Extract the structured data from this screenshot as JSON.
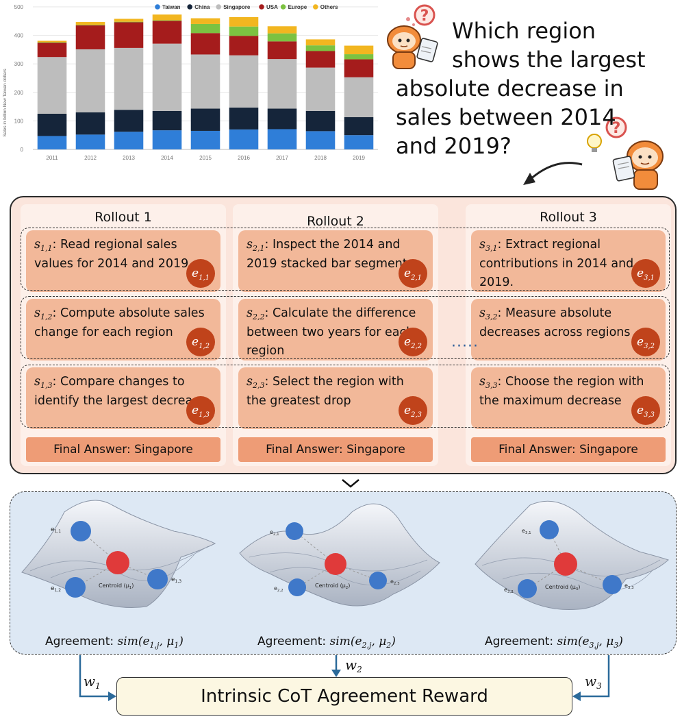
{
  "chart_data": {
    "type": "bar",
    "stacked": true,
    "categories": [
      "2011",
      "2012",
      "2013",
      "2014",
      "2015",
      "2016",
      "2017",
      "2018",
      "2019"
    ],
    "ylabel": "Sales in billion New Taiwan dollars",
    "ylim": [
      0,
      500
    ],
    "yticks": [
      "0",
      "100",
      "200",
      "300",
      "400",
      "500"
    ],
    "legend_position": "top",
    "series": [
      {
        "name": "Taiwan",
        "color": "#2f7ed8",
        "values": [
          47,
          52,
          62,
          67,
          65,
          70,
          71,
          64,
          50
        ]
      },
      {
        "name": "China",
        "color": "#15253a",
        "values": [
          78,
          78,
          77,
          68,
          78,
          77,
          72,
          71,
          63
        ]
      },
      {
        "name": "Singapore",
        "color": "#bdbdbd",
        "values": [
          199,
          221,
          217,
          236,
          190,
          183,
          174,
          152,
          140
        ]
      },
      {
        "name": "USA",
        "color": "#a51c1c",
        "values": [
          50,
          84,
          90,
          80,
          75,
          68,
          62,
          58,
          63
        ]
      },
      {
        "name": "Europe",
        "color": "#7cc241",
        "values": [
          2,
          2,
          2,
          2,
          32,
          33,
          28,
          20,
          18
        ]
      },
      {
        "name": "Others",
        "color": "#f2b620",
        "values": [
          5,
          10,
          10,
          20,
          20,
          33,
          25,
          21,
          30
        ]
      }
    ]
  },
  "question": {
    "lines": [
      "Which region",
      "shows the largest",
      "absolute decrease in",
      "sales between 2014",
      "and 2019?"
    ]
  },
  "rollouts": [
    {
      "title": "Rollout 1",
      "steps": [
        {
          "s": "s",
          "sub": "1,1",
          "text": ": Read regional sales values for 2014 and 2019",
          "e": "e",
          "esub": "1,1"
        },
        {
          "s": "s",
          "sub": "1,2",
          "text": ": Compute absolute sales change for each region",
          "e": "e",
          "esub": "1,2"
        },
        {
          "s": "s",
          "sub": "1,3",
          "text": ": Compare changes to identify the largest decrease",
          "e": "e",
          "esub": "1,3"
        }
      ],
      "final": "Final Answer: Singapore"
    },
    {
      "title": "Rollout 2",
      "steps": [
        {
          "s": "s",
          "sub": "2,1",
          "text": ": Inspect the 2014 and 2019 stacked bar segments",
          "e": "e",
          "esub": "2,1"
        },
        {
          "s": "s",
          "sub": "2,2",
          "text": ": Calculate the difference between two years for each region",
          "e": "e",
          "esub": "2,2"
        },
        {
          "s": "s",
          "sub": "2,3",
          "text": ": Select the region with the greatest drop",
          "e": "e",
          "esub": "2,3"
        }
      ],
      "final": "Final Answer: Singapore"
    },
    {
      "title": "Rollout 3",
      "steps": [
        {
          "s": "s",
          "sub": "3,1",
          "text": ": Extract regional contributions in 2014 and 2019.",
          "e": "e",
          "esub": "3,1"
        },
        {
          "s": "s",
          "sub": "3,2",
          "text": ": Measure absolute decreases across regions",
          "e": "e",
          "esub": "3,2"
        },
        {
          "s": "s",
          "sub": "3,3",
          "text": ": Choose the region with the maximum decrease",
          "e": "e",
          "esub": "3,3"
        }
      ],
      "final": "Final Answer: Singapore"
    }
  ],
  "dots": "·····",
  "landscapes": [
    {
      "e1": "e",
      "e1sub": "1,1",
      "e2": "e",
      "e2sub": "1,2",
      "e3": "e",
      "e3sub": "1,3",
      "centroid": "Centroid (μ",
      "csub": "1",
      "agreement": "Agreement: ",
      "sim": "sim(e",
      "simsub": "1,j",
      "simtail": ", μ",
      "mu": "1",
      "close": ")"
    },
    {
      "e1": "e",
      "e1sub": "2,1",
      "e2": "e",
      "e2sub": "2,2",
      "e3": "e",
      "e3sub": "2,3",
      "centroid": "Centroid (μ",
      "csub": "2",
      "agreement": "Agreement: ",
      "sim": "sim(e",
      "simsub": "2,j",
      "simtail": ", μ",
      "mu": "2",
      "close": ")"
    },
    {
      "e1": "e",
      "e1sub": "3,1",
      "e2": "e",
      "e2sub": "3,2",
      "e3": "e",
      "e3sub": "3,3",
      "centroid": "Centroid (μ",
      "csub": "3",
      "agreement": "Agreement: ",
      "sim": "sim(e",
      "simsub": "3,j",
      "simtail": ", μ",
      "mu": "3",
      "close": ")"
    }
  ],
  "weights": [
    {
      "w": "w",
      "sub": "1"
    },
    {
      "w": "w",
      "sub": "2"
    },
    {
      "w": "w",
      "sub": "3"
    }
  ],
  "reward": "Intrinsic CoT Agreement Reward",
  "colors": {
    "panel_bg": "#fbe5dc",
    "step_bg": "#f2b899",
    "badge": "#c0431b",
    "final_bg": "#ee9c76",
    "agree_bg": "#dde8f4",
    "arrow": "#2b6a9a",
    "embed": "#3f78c9",
    "centroid": "#e03a3a"
  }
}
